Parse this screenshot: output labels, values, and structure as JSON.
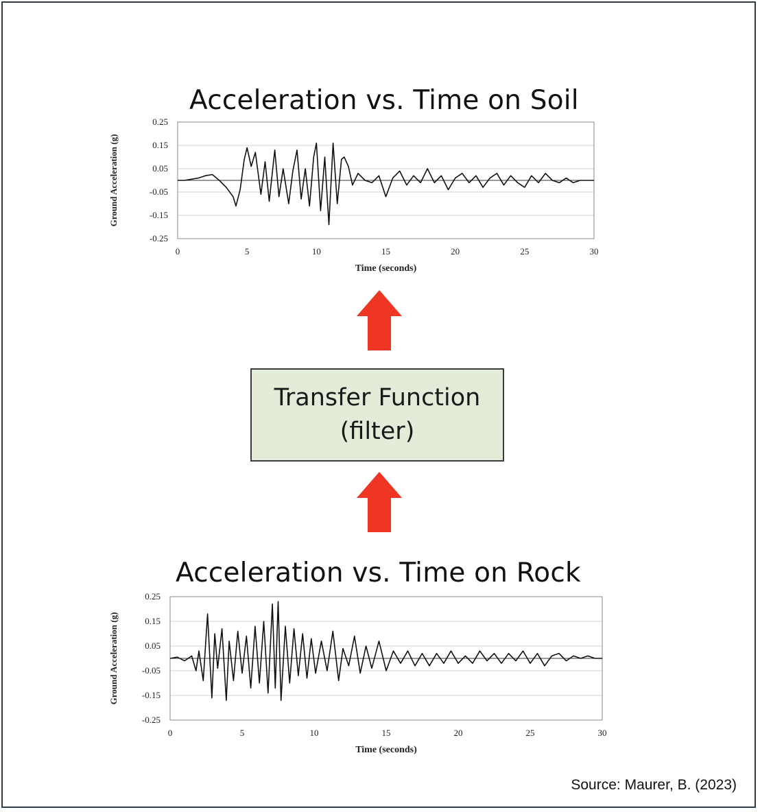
{
  "source": "Source: Maurer, B. (2023)",
  "transfer_box": {
    "line1": "Transfer Function",
    "line2": "(filter)"
  },
  "colors": {
    "arrow": "#ef3523",
    "box_fill": "#e3ecd9",
    "trace": "#111111"
  },
  "chart_data": [
    {
      "type": "line",
      "title": "Acceleration vs. Time on Soil",
      "xlabel": "Time (seconds)",
      "ylabel": "Ground Acceleration (g)",
      "xlim": [
        0,
        30
      ],
      "ylim": [
        -0.25,
        0.25
      ],
      "xticks": [
        "0",
        "5",
        "10",
        "15",
        "20",
        "25",
        "30"
      ],
      "yticks": [
        "0.25",
        "0.15",
        "0.05",
        "-0.05",
        "-0.15",
        "-0.25"
      ],
      "grid": "horizontal",
      "series": [
        {
          "x": [
            0,
            0.5,
            1,
            1.5,
            2,
            2.5,
            3,
            3.5,
            4,
            4.2,
            4.5,
            4.8,
            5,
            5.3,
            5.6,
            6,
            6.3,
            6.6,
            7,
            7.3,
            7.6,
            8,
            8.3,
            8.6,
            8.9,
            9.2,
            9.5,
            9.8,
            10,
            10.3,
            10.6,
            10.9,
            11.2,
            11.5,
            11.8,
            12,
            12.3,
            12.6,
            13,
            13.5,
            14,
            14.5,
            15,
            15.5,
            16,
            16.5,
            17,
            17.5,
            18,
            18.5,
            19,
            19.5,
            20,
            20.5,
            21,
            21.5,
            22,
            22.5,
            23,
            23.5,
            24,
            24.5,
            25,
            25.5,
            26,
            26.5,
            27,
            27.5,
            28,
            28.5,
            29,
            29.5,
            30
          ],
          "y": [
            0,
            0,
            0.005,
            0.01,
            0.02,
            0.025,
            0.0,
            -0.03,
            -0.07,
            -0.11,
            -0.04,
            0.09,
            0.14,
            0.06,
            0.12,
            -0.06,
            0.08,
            -0.09,
            0.13,
            -0.07,
            0.05,
            -0.1,
            0.04,
            0.13,
            -0.08,
            0.05,
            -0.11,
            0.1,
            0.16,
            -0.13,
            0.1,
            -0.19,
            0.16,
            -0.1,
            0.09,
            0.1,
            0.06,
            -0.02,
            0.03,
            0.0,
            -0.01,
            0.02,
            -0.07,
            0.01,
            0.04,
            -0.02,
            0.02,
            -0.01,
            0.05,
            -0.01,
            0.02,
            -0.04,
            0.01,
            0.03,
            -0.01,
            0.02,
            -0.03,
            0.01,
            0.03,
            -0.02,
            0.02,
            -0.01,
            -0.03,
            0.02,
            -0.01,
            0.03,
            0.0,
            -0.01,
            0.01,
            -0.01,
            0.0,
            0.0,
            0.0
          ]
        }
      ]
    },
    {
      "type": "line",
      "title": "Acceleration vs. Time on Rock",
      "xlabel": "Time (seconds)",
      "ylabel": "Ground Acceleration (g)",
      "xlim": [
        0,
        30
      ],
      "ylim": [
        -0.25,
        0.25
      ],
      "xticks": [
        "0",
        "5",
        "10",
        "15",
        "20",
        "25",
        "30"
      ],
      "yticks": [
        "0.25",
        "0.15",
        "0.05",
        "-0.05",
        "-0.15",
        "-0.25"
      ],
      "grid": "horizontal",
      "series": [
        {
          "x": [
            0,
            0.5,
            1,
            1.5,
            1.8,
            2,
            2.3,
            2.6,
            2.9,
            3.1,
            3.3,
            3.6,
            3.9,
            4.1,
            4.4,
            4.7,
            5,
            5.3,
            5.6,
            5.9,
            6.2,
            6.5,
            6.8,
            7.1,
            7.3,
            7.5,
            7.7,
            8,
            8.3,
            8.6,
            8.9,
            9.2,
            9.5,
            9.8,
            10.1,
            10.5,
            10.9,
            11.3,
            11.7,
            12,
            12.4,
            12.8,
            13.2,
            13.6,
            14,
            14.5,
            15,
            15.5,
            16,
            16.5,
            17,
            17.5,
            18,
            18.5,
            19,
            19.5,
            20,
            20.5,
            21,
            21.5,
            22,
            22.5,
            23,
            23.5,
            24,
            24.5,
            25,
            25.5,
            26,
            26.5,
            27,
            27.5,
            28,
            28.5,
            29,
            29.5,
            30
          ],
          "y": [
            0,
            0.005,
            -0.01,
            0.01,
            -0.05,
            0.03,
            -0.09,
            0.18,
            -0.16,
            0.1,
            -0.04,
            0.12,
            -0.17,
            0.07,
            -0.09,
            0.11,
            -0.06,
            0.09,
            -0.12,
            0.13,
            -0.1,
            0.15,
            -0.14,
            0.22,
            -0.12,
            0.23,
            -0.17,
            0.13,
            -0.1,
            0.12,
            -0.07,
            0.1,
            -0.08,
            0.08,
            -0.06,
            0.07,
            -0.05,
            0.11,
            -0.09,
            0.04,
            -0.03,
            0.09,
            -0.06,
            0.05,
            -0.04,
            0.07,
            -0.05,
            0.03,
            -0.02,
            0.03,
            -0.03,
            0.02,
            -0.03,
            0.02,
            -0.02,
            0.03,
            -0.02,
            0.01,
            -0.02,
            0.03,
            -0.01,
            0.02,
            -0.02,
            0.02,
            -0.01,
            0.03,
            -0.02,
            0.02,
            -0.03,
            0.01,
            0.02,
            -0.01,
            0.01,
            0.0,
            0.01,
            0.0,
            0.0
          ]
        }
      ]
    }
  ]
}
